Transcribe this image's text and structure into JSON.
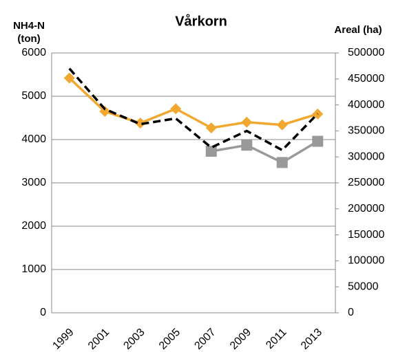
{
  "chart_data": {
    "type": "line",
    "title": "Vårkorn",
    "y_label": [
      "NH4-N",
      "(ton)"
    ],
    "y2_label": "Areal (ha)",
    "categories": [
      "1999",
      "2001",
      "2003",
      "2005",
      "2007",
      "2009",
      "2011",
      "2013"
    ],
    "series": [
      {
        "color": "#f0a830",
        "marker": "diamond",
        "dashed": false,
        "values": [
          5420,
          4650,
          4380,
          4710,
          4270,
          4400,
          4340,
          4590
        ]
      },
      {
        "color": "#999999",
        "marker": "square",
        "dashed": false,
        "values": [
          null,
          null,
          null,
          null,
          3730,
          3870,
          3470,
          3960
        ]
      },
      {
        "color": "#000000",
        "marker": "none",
        "dashed": true,
        "axis": "y2",
        "values": [
          470000,
          392000,
          363000,
          374000,
          318000,
          350000,
          313000,
          383000
        ]
      }
    ],
    "ylim": [
      0,
      6000
    ],
    "yticks": [
      0,
      1000,
      2000,
      3000,
      4000,
      5000,
      6000
    ],
    "y2lim": [
      0,
      500000
    ],
    "y2ticks": [
      0,
      50000,
      100000,
      150000,
      200000,
      250000,
      300000,
      350000,
      400000,
      450000,
      500000
    ],
    "grid": true
  }
}
